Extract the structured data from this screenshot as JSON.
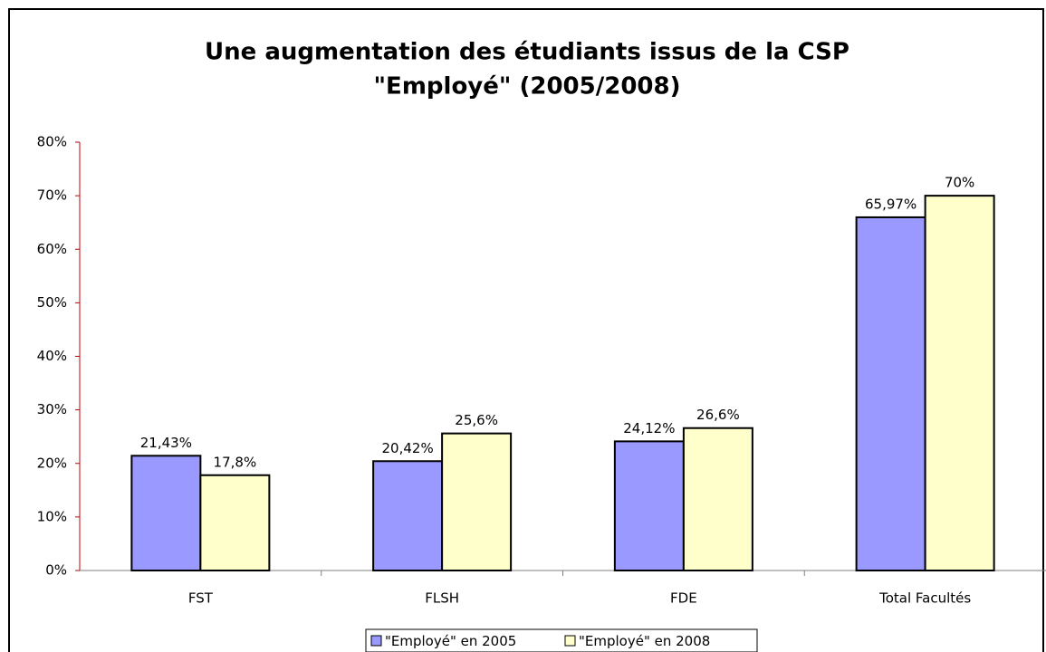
{
  "chart_data": {
    "type": "bar",
    "title": [
      "Une augmentation des étudiants issus de la CSP",
      "\"Employé\" (2005/2008)"
    ],
    "categories": [
      "FST",
      "FLSH",
      "FDE",
      "Total Facultés"
    ],
    "series": [
      {
        "name": "\"Employé\" en 2005",
        "color": "#9999ff",
        "values": [
          21.43,
          20.42,
          24.12,
          65.97
        ],
        "value_labels": [
          "21,43%",
          "20,42%",
          "24,12%",
          "65,97%"
        ]
      },
      {
        "name": "\"Employé\" en 2008",
        "color": "#ffffcc",
        "values": [
          17.8,
          25.6,
          26.6,
          70
        ],
        "value_labels": [
          "17,8%",
          "25,6%",
          "26,6%",
          "70%"
        ]
      }
    ],
    "ylim": [
      0,
      80
    ],
    "yticks": [
      {
        "value": 0,
        "label": "0%"
      },
      {
        "value": 10,
        "label": "10%"
      },
      {
        "value": 20,
        "label": "20%"
      },
      {
        "value": 30,
        "label": "30%"
      },
      {
        "value": 40,
        "label": "40%"
      },
      {
        "value": 50,
        "label": "50%"
      },
      {
        "value": 60,
        "label": "60%"
      },
      {
        "value": 70,
        "label": "70%"
      },
      {
        "value": 80,
        "label": "80%"
      }
    ],
    "grid": false,
    "legend": "bottom"
  }
}
